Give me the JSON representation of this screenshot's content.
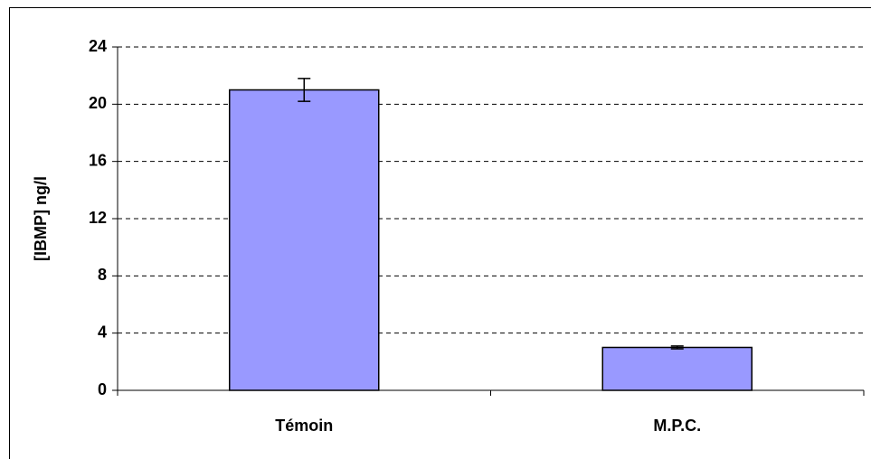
{
  "chart_data": {
    "type": "bar",
    "y_label": "[IBMP] ng/l",
    "categories": [
      "Témoin",
      "M.P.C."
    ],
    "values": [
      21,
      3
    ],
    "errors": [
      0.8,
      0.1
    ],
    "color": "#9999ff",
    "ylim": [
      0,
      24
    ],
    "yticks": [
      0,
      4,
      8,
      12,
      16,
      20,
      24
    ],
    "grid": true
  }
}
